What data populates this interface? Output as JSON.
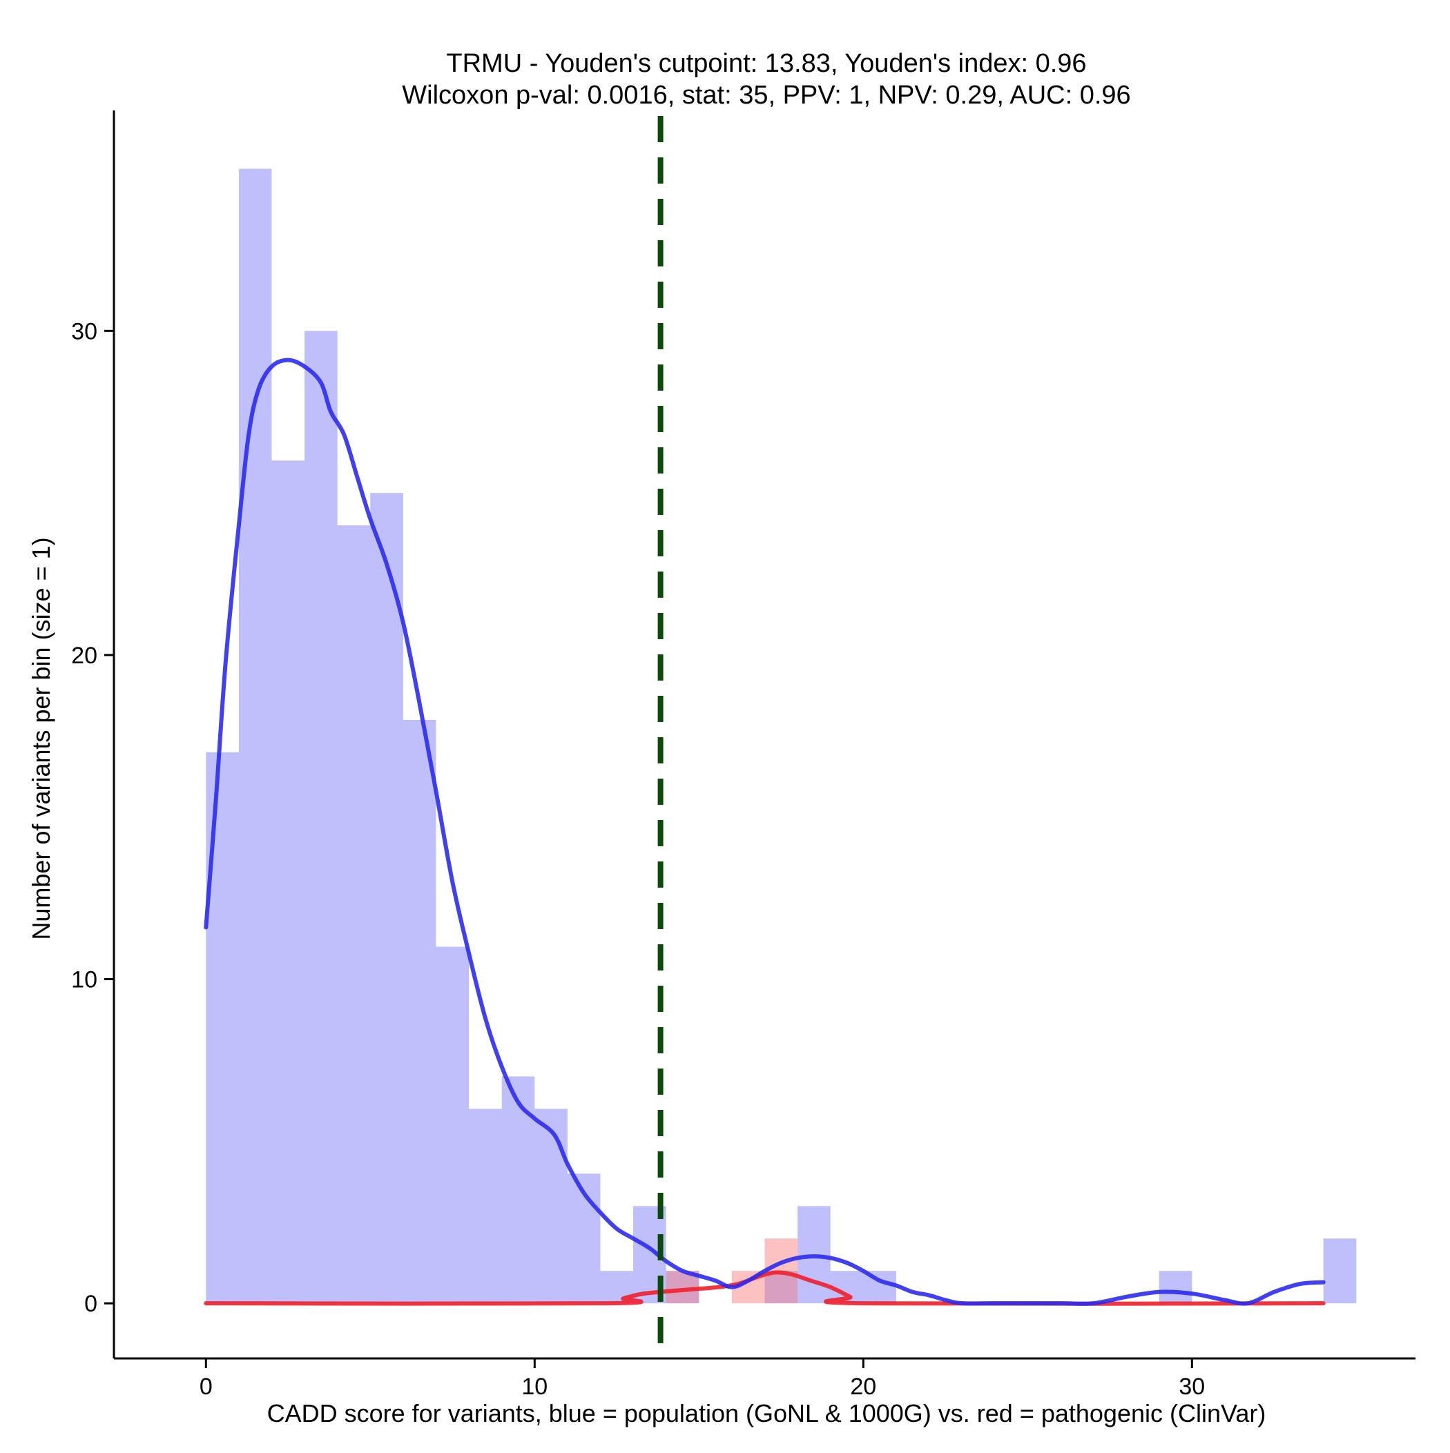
{
  "chart_data": {
    "type": "histogram",
    "title_line1": "TRMU - Youden's cutpoint: 13.83, Youden's index: 0.96",
    "title_line2": "Wilcoxon p-val: 0.0016, stat: 35, PPV: 1, NPV: 0.29, AUC: 0.96",
    "xlabel": "CADD score for variants, blue = population (GoNL & 1000G) vs. red = pathogenic (ClinVar)",
    "ylabel": "Number of variants per bin (size = 1)",
    "xlim": [
      -2.8,
      36.8
    ],
    "ylim": [
      -1.7,
      36.8
    ],
    "x_ticks": [
      0,
      10,
      20,
      30
    ],
    "x_tick_labels": [
      "0",
      "10",
      "20",
      "30"
    ],
    "y_ticks": [
      0,
      10,
      20,
      30
    ],
    "y_tick_labels": [
      "0",
      "10",
      "20",
      "30"
    ],
    "bin_width": 1,
    "cutpoint": 13.83,
    "series": [
      {
        "name": "population (GoNL & 1000G)",
        "color": "#8080f8",
        "opacity": 0.5,
        "bins": [
          {
            "x0": 0,
            "count": 17
          },
          {
            "x0": 1,
            "count": 35
          },
          {
            "x0": 2,
            "count": 26
          },
          {
            "x0": 3,
            "count": 30
          },
          {
            "x0": 4,
            "count": 24
          },
          {
            "x0": 5,
            "count": 25
          },
          {
            "x0": 6,
            "count": 18
          },
          {
            "x0": 7,
            "count": 11
          },
          {
            "x0": 8,
            "count": 6
          },
          {
            "x0": 9,
            "count": 7
          },
          {
            "x0": 10,
            "count": 6
          },
          {
            "x0": 11,
            "count": 4
          },
          {
            "x0": 12,
            "count": 1
          },
          {
            "x0": 13,
            "count": 3
          },
          {
            "x0": 14,
            "count": 1
          },
          {
            "x0": 17,
            "count": 1
          },
          {
            "x0": 18,
            "count": 3
          },
          {
            "x0": 19,
            "count": 1
          },
          {
            "x0": 20,
            "count": 1
          },
          {
            "x0": 29,
            "count": 1
          },
          {
            "x0": 34,
            "count": 2
          }
        ],
        "density_color": "#2b2bf0",
        "density": [
          [
            0,
            11.6
          ],
          [
            0.3,
            15.5
          ],
          [
            0.6,
            19.8
          ],
          [
            1.0,
            24.0
          ],
          [
            1.3,
            26.8
          ],
          [
            1.6,
            28.2
          ],
          [
            2.0,
            28.9
          ],
          [
            2.5,
            29.1
          ],
          [
            3.0,
            28.9
          ],
          [
            3.5,
            28.4
          ],
          [
            3.8,
            27.5
          ],
          [
            4.2,
            26.8
          ],
          [
            4.6,
            25.5
          ],
          [
            5.0,
            24.2
          ],
          [
            5.5,
            22.8
          ],
          [
            6.0,
            21.0
          ],
          [
            6.5,
            18.5
          ],
          [
            7.0,
            15.8
          ],
          [
            7.5,
            13.0
          ],
          [
            8.0,
            10.8
          ],
          [
            8.5,
            8.8
          ],
          [
            9.0,
            7.3
          ],
          [
            9.5,
            6.2
          ],
          [
            10.0,
            5.7
          ],
          [
            10.6,
            5.2
          ],
          [
            11.0,
            4.3
          ],
          [
            11.5,
            3.4
          ],
          [
            12.0,
            2.8
          ],
          [
            12.5,
            2.3
          ],
          [
            13.0,
            2.0
          ],
          [
            13.5,
            1.7
          ],
          [
            14.0,
            1.3
          ],
          [
            14.5,
            1.0
          ],
          [
            15.0,
            0.85
          ],
          [
            15.5,
            0.7
          ],
          [
            16.0,
            0.5
          ],
          [
            16.5,
            0.7
          ],
          [
            17.0,
            1.0
          ],
          [
            17.5,
            1.25
          ],
          [
            18.0,
            1.4
          ],
          [
            18.5,
            1.45
          ],
          [
            19.0,
            1.4
          ],
          [
            19.5,
            1.25
          ],
          [
            20.0,
            1.0
          ],
          [
            20.5,
            0.7
          ],
          [
            21.0,
            0.55
          ],
          [
            21.5,
            0.35
          ],
          [
            22.0,
            0.25
          ],
          [
            22.5,
            0.1
          ],
          [
            23.0,
            0.0
          ],
          [
            24.0,
            0.0
          ],
          [
            26.0,
            0.0
          ],
          [
            27.0,
            0.0
          ],
          [
            28.0,
            0.2
          ],
          [
            29.0,
            0.35
          ],
          [
            30.0,
            0.3
          ],
          [
            31.0,
            0.1
          ],
          [
            31.7,
            0.0
          ],
          [
            32.5,
            0.35
          ],
          [
            33.3,
            0.6
          ],
          [
            34.0,
            0.65
          ]
        ]
      },
      {
        "name": "pathogenic (ClinVar)",
        "color": "#f87878",
        "opacity": 0.45,
        "bins": [
          {
            "x0": 14,
            "count": 1
          },
          {
            "x0": 16,
            "count": 1
          },
          {
            "x0": 17,
            "count": 2
          }
        ],
        "density_color": "#f01f2b",
        "density": [
          [
            0,
            0
          ],
          [
            12.2,
            0.0
          ],
          [
            12.7,
            0.15
          ],
          [
            13.2,
            0.28
          ],
          [
            13.8,
            0.35
          ],
          [
            14.4,
            0.4
          ],
          [
            15.0,
            0.45
          ],
          [
            15.6,
            0.5
          ],
          [
            16.2,
            0.6
          ],
          [
            16.8,
            0.82
          ],
          [
            17.3,
            0.95
          ],
          [
            17.8,
            0.9
          ],
          [
            18.4,
            0.7
          ],
          [
            19.0,
            0.5
          ],
          [
            19.6,
            0.2
          ],
          [
            20.0,
            0.0
          ],
          [
            34.0,
            0.0
          ]
        ]
      }
    ]
  }
}
